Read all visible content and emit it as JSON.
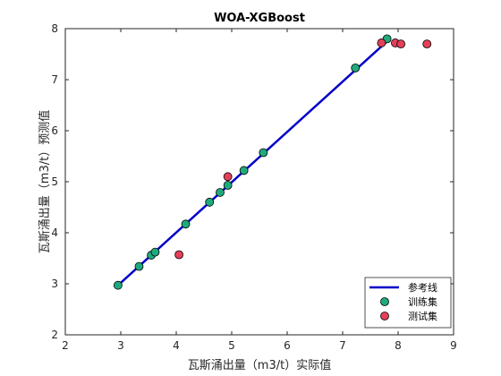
{
  "chart_data": {
    "type": "scatter",
    "title": "WOA-XGBoost",
    "xlabel": "瓦斯涌出量（m3/t）实际值",
    "ylabel": "瓦斯涌出量（m3/t）预测值",
    "xlim": [
      2,
      9
    ],
    "ylim": [
      2,
      8
    ],
    "xticks": [
      "2",
      "3",
      "4",
      "5",
      "6",
      "7",
      "8",
      "9"
    ],
    "yticks": [
      "2",
      "3",
      "4",
      "5",
      "6",
      "7",
      "8"
    ],
    "grid": false,
    "legend_position": "bottom-right",
    "reference_line": {
      "name": "参考线",
      "x": [
        2.95,
        7.85
      ],
      "y": [
        2.97,
        7.8
      ],
      "color": "#0000c8"
    },
    "series": [
      {
        "name": "训练集",
        "color": "#1faa7e",
        "x": [
          2.95,
          3.33,
          3.55,
          3.62,
          4.17,
          4.6,
          4.79,
          4.93,
          5.22,
          5.57,
          7.23,
          7.8
        ],
        "y": [
          2.97,
          3.34,
          3.56,
          3.62,
          4.17,
          4.6,
          4.79,
          4.93,
          5.22,
          5.57,
          7.23,
          7.8
        ]
      },
      {
        "name": "测试集",
        "color": "#e4405a",
        "x": [
          4.05,
          4.93,
          7.7,
          7.95,
          8.05,
          8.52
        ],
        "y": [
          3.57,
          5.1,
          7.72,
          7.72,
          7.7,
          7.7
        ]
      }
    ]
  }
}
